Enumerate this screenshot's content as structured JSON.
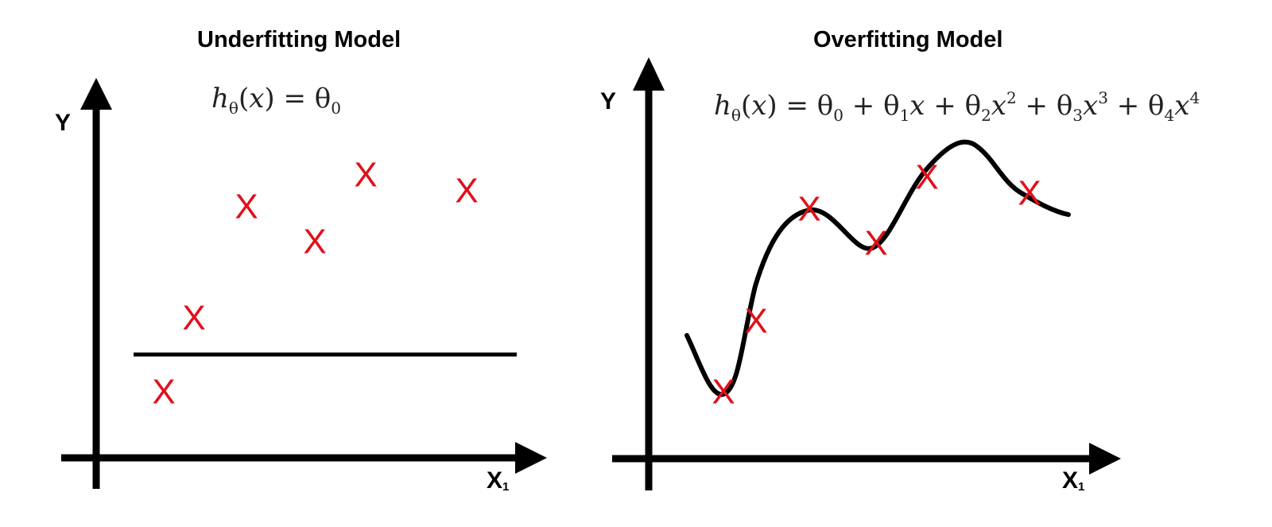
{
  "left_panel": {
    "title": "Underfitting Model",
    "y_label": "Y",
    "x_label_base": "X",
    "x_label_sub": "1",
    "formula_html": "<i>h</i><sub>θ</sub>(<i>x</i>) = θ<sub>0</sub>",
    "points": [
      {
        "label": "X"
      },
      {
        "label": "X"
      },
      {
        "label": "X"
      },
      {
        "label": "X"
      },
      {
        "label": "X"
      },
      {
        "label": "X"
      }
    ]
  },
  "right_panel": {
    "title": "Overfitting Model",
    "y_label": "Y",
    "x_label_base": "X",
    "x_label_sub": "1",
    "formula_html": "<i>h</i><sub>θ</sub>(<i>x</i>) = θ<sub>0</sub> + θ<sub>1</sub><i>x</i> + θ<sub>2</sub><i>x</i><sup>2</sup> + θ<sub>3</sub><i>x</i><sup>3</sup> + θ<sub>4</sub><i>x</i><sup>4</sup>",
    "points": [
      {
        "label": "X"
      },
      {
        "label": "X"
      },
      {
        "label": "X"
      },
      {
        "label": "X"
      },
      {
        "label": "X"
      },
      {
        "label": "X"
      }
    ]
  },
  "colors": {
    "axis": "#000000",
    "point": "#e0101a",
    "fit_line": "#000000"
  }
}
